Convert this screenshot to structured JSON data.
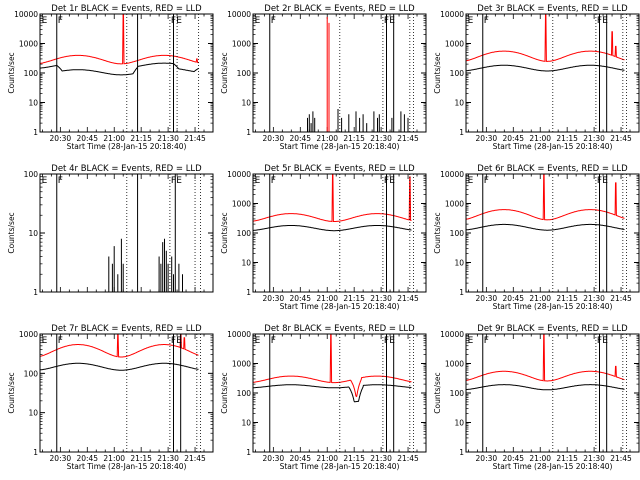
{
  "figure": {
    "background": "#ffffff",
    "colors": {
      "events": "#000000",
      "lld": "#ff0000"
    }
  },
  "chart_data": [
    {
      "id": "det1",
      "type": "line",
      "title": "Det 1r BLACK = Events, RED = LLD",
      "xlabel": "Start Time (28-Jan-15 20:18:40)",
      "ylabel": "Counts/sec",
      "yscale": "log",
      "ylim": [
        1,
        10000
      ],
      "xlim": [
        "20:18:40",
        "21:55:00"
      ],
      "x_ticks": [
        "20:30",
        "20:45",
        "21:00",
        "21:15",
        "21:30",
        "21:45"
      ],
      "y_ticks": [
        "1",
        "10",
        "100",
        "1000",
        "10000"
      ],
      "markers": {
        "solid": [
          "20:28",
          "21:13",
          "21:33"
        ],
        "dotted": [
          "21:07",
          "21:31",
          "21:35",
          "21:47"
        ],
        "labels": [
          {
            "text": "E",
            "time": "20:19"
          },
          {
            "text": "F",
            "time": "20:28"
          },
          {
            "text": "F",
            "time": "21:31"
          },
          {
            "text": "E",
            "time": "21:34"
          }
        ]
      },
      "series": [
        {
          "name": "Events",
          "style": "events",
          "profile": {
            "base": 180,
            "amp": 0.2,
            "dips": [
              {
                "t0": "20:28",
                "t1": "21:13",
                "f": 0.6
              },
              {
                "t0": "21:33",
                "t1": "21:47",
                "f": 0.7
              }
            ],
            "spikes": [],
            "tmin": "20:18:40",
            "tmax": "21:47"
          }
        },
        {
          "name": "LLD",
          "style": "lld",
          "profile": {
            "base": 300,
            "amp": 0.32,
            "dips": [],
            "spikes": [
              {
                "t": "21:05",
                "v": 10000
              },
              {
                "t": "21:46",
                "v": 300
              }
            ],
            "tmin": "20:18:40",
            "tmax": "21:47"
          }
        }
      ]
    },
    {
      "id": "det2",
      "type": "line",
      "title": "Det 2r BLACK = Events, RED = LLD",
      "xlabel": "Start Time (28-Jan-15 20:18:40)",
      "ylabel": "Counts/sec",
      "yscale": "log",
      "ylim": [
        1,
        10000
      ],
      "xlim": [
        "20:18:40",
        "21:55:00"
      ],
      "x_ticks": [
        "20:30",
        "20:45",
        "21:00",
        "21:15",
        "21:30",
        "21:45"
      ],
      "y_ticks": [
        "1",
        "10",
        "100",
        "1000",
        "10000"
      ],
      "markers": {
        "solid": [
          "20:28",
          "21:33",
          "21:37"
        ],
        "dotted": [
          "21:07",
          "21:31",
          "21:46",
          "21:48"
        ],
        "labels": [
          {
            "text": "E",
            "time": "20:19"
          },
          {
            "text": "F",
            "time": "20:28"
          },
          {
            "text": "F",
            "time": "21:31"
          },
          {
            "text": "E",
            "time": "21:34"
          }
        ]
      },
      "series": [
        {
          "name": "Events",
          "style": "events",
          "sparse": [
            [
              "20:49",
              3
            ],
            [
              "20:50",
              4
            ],
            [
              "20:51",
              2
            ],
            [
              "20:52",
              5
            ],
            [
              "20:53",
              3
            ],
            [
              "21:06",
              6
            ],
            [
              "21:08",
              3
            ],
            [
              "21:12",
              4
            ],
            [
              "21:16",
              5
            ],
            [
              "21:18",
              3
            ],
            [
              "21:20",
              4
            ],
            [
              "21:22",
              2
            ],
            [
              "21:26",
              5
            ],
            [
              "21:28",
              3
            ],
            [
              "21:29",
              4
            ],
            [
              "21:36",
              3
            ],
            [
              "21:41",
              5
            ],
            [
              "21:43",
              4
            ],
            [
              "21:45",
              3
            ]
          ]
        },
        {
          "name": "LLD",
          "style": "lld",
          "sparse": [
            [
              "21:00",
              8000
            ],
            [
              "21:01",
              5000
            ]
          ]
        }
      ]
    },
    {
      "id": "det3",
      "type": "line",
      "title": "Det 3r BLACK = Events, RED = LLD",
      "xlabel": "Start Time (28-Jan-15 20:18:40)",
      "ylabel": "Counts/sec",
      "yscale": "log",
      "ylim": [
        1,
        10000
      ],
      "xlim": [
        "20:18:40",
        "21:55:00"
      ],
      "x_ticks": [
        "20:30",
        "20:45",
        "21:00",
        "21:15",
        "21:30",
        "21:45"
      ],
      "y_ticks": [
        "1",
        "10",
        "100",
        "1000",
        "10000"
      ],
      "markers": {
        "solid": [
          "20:28",
          "21:33",
          "21:37"
        ],
        "dotted": [
          "21:07",
          "21:31",
          "21:46",
          "21:48"
        ],
        "labels": [
          {
            "text": "E",
            "time": "20:19"
          },
          {
            "text": "F",
            "time": "20:28"
          },
          {
            "text": "F",
            "time": "21:31"
          },
          {
            "text": "E",
            "time": "21:34"
          }
        ]
      },
      "series": [
        {
          "name": "Events",
          "style": "events",
          "profile": {
            "base": 150,
            "amp": 0.22,
            "dips": [],
            "spikes": [],
            "tmin": "20:18:40",
            "tmax": "21:47"
          }
        },
        {
          "name": "LLD",
          "style": "lld",
          "profile": {
            "base": 400,
            "amp": 0.38,
            "dips": [],
            "spikes": [
              {
                "t": "21:03",
                "v": 10000
              },
              {
                "t": "21:40",
                "v": 2500
              },
              {
                "t": "21:42",
                "v": 800
              }
            ],
            "tmin": "20:18:40",
            "tmax": "21:47"
          }
        }
      ]
    },
    {
      "id": "det4",
      "type": "line",
      "title": "Det 4r BLACK = Events, RED = LLD",
      "xlabel": "",
      "ylabel": "Counts/sec",
      "yscale": "log",
      "ylim": [
        1,
        100
      ],
      "xlim": [
        "20:18:40",
        "21:55:00"
      ],
      "x_ticks": [],
      "y_ticks": [
        "1",
        "10",
        "100"
      ],
      "markers": {
        "solid": [
          "20:28",
          "21:13",
          "21:34"
        ],
        "dotted": [
          "21:07",
          "21:31",
          "21:45",
          "21:48"
        ],
        "labels": [
          {
            "text": "E",
            "time": "20:19"
          },
          {
            "text": "F",
            "time": "20:28"
          },
          {
            "text": "F",
            "time": "21:31"
          },
          {
            "text": "E",
            "time": "21:34"
          }
        ]
      },
      "series": [
        {
          "name": "Events",
          "style": "events",
          "sparse": [
            [
              "20:57",
              4
            ],
            [
              "20:59",
              3
            ],
            [
              "21:00",
              6
            ],
            [
              "21:02",
              2
            ],
            [
              "21:04",
              8
            ],
            [
              "21:05",
              3
            ],
            [
              "21:25",
              4
            ],
            [
              "21:26",
              3
            ],
            [
              "21:27",
              7
            ],
            [
              "21:28",
              8
            ],
            [
              "21:29",
              5
            ],
            [
              "21:30",
              3
            ],
            [
              "21:32",
              4
            ],
            [
              "21:33",
              2
            ],
            [
              "21:36",
              3
            ],
            [
              "21:38",
              2
            ]
          ]
        }
      ]
    },
    {
      "id": "det5",
      "type": "line",
      "title": "Det 5r BLACK = Events, RED = LLD",
      "xlabel": "Start Time (28-Jan-15 20:18:40)",
      "ylabel": "Counts/sec",
      "yscale": "log",
      "ylim": [
        1,
        10000
      ],
      "xlim": [
        "20:18:40",
        "21:55:00"
      ],
      "x_ticks": [
        "20:30",
        "20:45",
        "21:00",
        "21:15",
        "21:30",
        "21:45"
      ],
      "y_ticks": [
        "1",
        "10",
        "100",
        "1000",
        "10000"
      ],
      "markers": {
        "solid": [
          "20:28",
          "21:33",
          "21:37"
        ],
        "dotted": [
          "21:07",
          "21:31",
          "21:46",
          "21:48"
        ],
        "labels": [
          {
            "text": "E",
            "time": "20:19"
          },
          {
            "text": "F",
            "time": "20:28"
          },
          {
            "text": "F",
            "time": "21:31"
          },
          {
            "text": "E",
            "time": "21:34"
          }
        ]
      },
      "series": [
        {
          "name": "Events",
          "style": "events",
          "profile": {
            "base": 150,
            "amp": 0.2,
            "dips": [],
            "spikes": [],
            "tmin": "20:18:40",
            "tmax": "21:47"
          }
        },
        {
          "name": "LLD",
          "style": "lld",
          "profile": {
            "base": 350,
            "amp": 0.3,
            "dips": [],
            "spikes": [
              {
                "t": "21:03",
                "v": 10000
              },
              {
                "t": "21:46",
                "v": 8000
              }
            ],
            "tmin": "20:18:40",
            "tmax": "21:47"
          }
        }
      ]
    },
    {
      "id": "det6",
      "type": "line",
      "title": "Det 6r BLACK = Events, RED = LLD",
      "xlabel": "Start Time (28-Jan-15 20:18:40)",
      "ylabel": "Counts/sec",
      "yscale": "log",
      "ylim": [
        1,
        10000
      ],
      "xlim": [
        "20:18:40",
        "21:55:00"
      ],
      "x_ticks": [
        "20:30",
        "20:45",
        "21:00",
        "21:15",
        "21:30",
        "21:45"
      ],
      "y_ticks": [
        "1",
        "10",
        "100",
        "1000",
        "10000"
      ],
      "markers": {
        "solid": [
          "20:28",
          "21:33",
          "21:37"
        ],
        "dotted": [
          "21:07",
          "21:31",
          "21:46",
          "21:48"
        ],
        "labels": [
          {
            "text": "E",
            "time": "20:19"
          },
          {
            "text": "F",
            "time": "20:28"
          },
          {
            "text": "F",
            "time": "21:31"
          },
          {
            "text": "E",
            "time": "21:34"
          }
        ]
      },
      "series": [
        {
          "name": "Events",
          "style": "events",
          "profile": {
            "base": 160,
            "amp": 0.22,
            "dips": [],
            "spikes": [],
            "tmin": "20:18:40",
            "tmax": "21:47"
          }
        },
        {
          "name": "LLD",
          "style": "lld",
          "profile": {
            "base": 450,
            "amp": 0.38,
            "dips": [],
            "spikes": [
              {
                "t": "21:02",
                "v": 10000
              },
              {
                "t": "21:42",
                "v": 5000
              }
            ],
            "tmin": "20:18:40",
            "tmax": "21:47"
          }
        }
      ]
    },
    {
      "id": "det7",
      "type": "line",
      "title": "Det 7r BLACK = Events, RED = LLD",
      "xlabel": "Start Time (28-Jan-15 20:18:40)",
      "ylabel": "Counts/sec",
      "yscale": "log",
      "ylim": [
        1,
        1000
      ],
      "xlim": [
        "20:18:40",
        "21:55:00"
      ],
      "x_ticks": [
        "20:30",
        "20:45",
        "21:00",
        "21:15",
        "21:30",
        "21:45"
      ],
      "y_ticks": [
        "1",
        "10",
        "100",
        "1000"
      ],
      "markers": {
        "solid": [
          "20:28",
          "21:33",
          "21:37"
        ],
        "dotted": [
          "21:07",
          "21:31",
          "21:46",
          "21:48"
        ],
        "labels": [
          {
            "text": "E",
            "time": "20:19"
          },
          {
            "text": "F",
            "time": "20:28"
          },
          {
            "text": "F",
            "time": "21:31"
          },
          {
            "text": "E",
            "time": "21:34"
          }
        ]
      },
      "series": [
        {
          "name": "Events",
          "style": "events",
          "profile": {
            "base": 150,
            "amp": 0.2,
            "dips": [],
            "spikes": [],
            "tmin": "20:18:40",
            "tmax": "21:47"
          }
        },
        {
          "name": "LLD",
          "style": "lld",
          "profile": {
            "base": 400,
            "amp": 0.35,
            "dips": [],
            "spikes": [
              {
                "t": "21:02",
                "v": 1000
              },
              {
                "t": "21:37",
                "v": 1000
              },
              {
                "t": "21:39",
                "v": 800
              }
            ],
            "tmin": "20:18:40",
            "tmax": "21:47"
          }
        }
      ]
    },
    {
      "id": "det8",
      "type": "line",
      "title": "Det 8r BLACK = Events, RED = LLD",
      "xlabel": "Start Time (28-Jan-15 20:18:40)",
      "ylabel": "Counts/sec",
      "yscale": "log",
      "ylim": [
        1,
        10000
      ],
      "xlim": [
        "20:18:40",
        "21:55:00"
      ],
      "x_ticks": [
        "20:30",
        "20:45",
        "21:00",
        "21:15",
        "21:30",
        "21:45"
      ],
      "y_ticks": [
        "1",
        "10",
        "100",
        "1000",
        "10000"
      ],
      "markers": {
        "solid": [
          "20:28",
          "21:33",
          "21:37"
        ],
        "dotted": [
          "21:07",
          "21:31",
          "21:46",
          "21:48"
        ],
        "labels": [
          {
            "text": "E",
            "time": "20:19"
          },
          {
            "text": "F",
            "time": "20:28"
          },
          {
            "text": "F",
            "time": "21:31"
          },
          {
            "text": "E",
            "time": "21:34"
          }
        ]
      },
      "series": [
        {
          "name": "Events",
          "style": "events",
          "profile": {
            "base": 170,
            "amp": 0.12,
            "dips": [
              {
                "t0": "21:12",
                "t1": "21:20",
                "f": 0.3
              }
            ],
            "spikes": [],
            "tmin": "20:18:40",
            "tmax": "21:47"
          }
        },
        {
          "name": "LLD",
          "style": "lld",
          "profile": {
            "base": 300,
            "amp": 0.25,
            "dips": [
              {
                "t0": "21:13",
                "t1": "21:19",
                "f": 0.25
              }
            ],
            "spikes": [
              {
                "t": "21:02",
                "v": 10000
              }
            ],
            "tmin": "20:18:40",
            "tmax": "21:47"
          }
        }
      ]
    },
    {
      "id": "det9",
      "type": "line",
      "title": "Det 9r BLACK = Events, RED = LLD",
      "xlabel": "Start Time (28-Jan-15 20:18:40)",
      "ylabel": "Counts/sec",
      "yscale": "log",
      "ylim": [
        1,
        10000
      ],
      "xlim": [
        "20:18:40",
        "21:55:00"
      ],
      "x_ticks": [
        "20:30",
        "20:45",
        "21:00",
        "21:15",
        "21:30",
        "21:45"
      ],
      "y_ticks": [
        "1",
        "10",
        "100",
        "1000",
        "10000"
      ],
      "markers": {
        "solid": [
          "20:28",
          "21:33",
          "21:37"
        ],
        "dotted": [
          "21:07",
          "21:31",
          "21:46",
          "21:48"
        ],
        "labels": [
          {
            "text": "E",
            "time": "20:19"
          },
          {
            "text": "F",
            "time": "20:28"
          },
          {
            "text": "F",
            "time": "21:31"
          },
          {
            "text": "E",
            "time": "21:34"
          }
        ]
      },
      "series": [
        {
          "name": "Events",
          "style": "events",
          "profile": {
            "base": 160,
            "amp": 0.2,
            "dips": [],
            "spikes": [],
            "tmin": "20:18:40",
            "tmax": "21:47"
          }
        },
        {
          "name": "LLD",
          "style": "lld",
          "profile": {
            "base": 400,
            "amp": 0.36,
            "dips": [],
            "spikes": [
              {
                "t": "21:02",
                "v": 10000
              },
              {
                "t": "21:42",
                "v": 800
              }
            ],
            "tmin": "20:18:40",
            "tmax": "21:47"
          }
        }
      ]
    }
  ]
}
